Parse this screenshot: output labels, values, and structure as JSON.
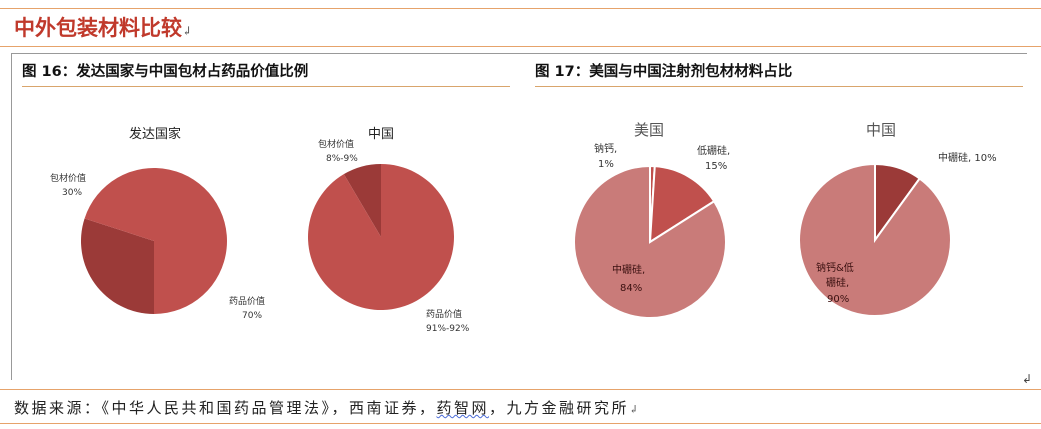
{
  "section": {
    "title": "中外包装材料比较",
    "mark": "↲"
  },
  "figures": [
    {
      "title": "图 16：发达国家与中国包材占药品价值比例"
    },
    {
      "title": "图 17：美国与中国注射剂包材材料占比"
    }
  ],
  "source": {
    "prefix": "数据来源：《中华人民共和国药品管理法》，西南证券，",
    "name": "药智网",
    "suffix": "，九方金融研究所",
    "mark": "↲"
  },
  "colors": {
    "accent": "#c0392b",
    "pie_main": "#c0504d",
    "pie_dark": "#9b3a38",
    "pie_pink": "#c97b79",
    "pie_red": "#c0504d"
  },
  "chart_data": [
    {
      "type": "pie",
      "title": "发达国家",
      "slices": [
        {
          "label": "包材价值",
          "value": 30,
          "value_label": "30%"
        },
        {
          "label": "药品价值",
          "value": 70,
          "value_label": "70%"
        }
      ]
    },
    {
      "type": "pie",
      "title": "中国",
      "slices": [
        {
          "label": "包材价值",
          "value": 8.5,
          "value_label": "8%-9%"
        },
        {
          "label": "药品价值",
          "value": 91.5,
          "value_label": "91%-92%"
        }
      ]
    },
    {
      "type": "pie",
      "title": "美国",
      "slices": [
        {
          "label": "钠钙,",
          "value": 1,
          "value_label": "1%"
        },
        {
          "label": "低硼硅,",
          "value": 15,
          "value_label": "15%"
        },
        {
          "label": "中硼硅,",
          "value": 84,
          "value_label": "84%"
        }
      ]
    },
    {
      "type": "pie",
      "title": "中国",
      "slices": [
        {
          "label": "中硼硅,",
          "value": 10,
          "value_label": "10%"
        },
        {
          "label": "钠钙&低",
          "label2": "硼硅,",
          "value": 90,
          "value_label": "90%"
        }
      ]
    }
  ]
}
